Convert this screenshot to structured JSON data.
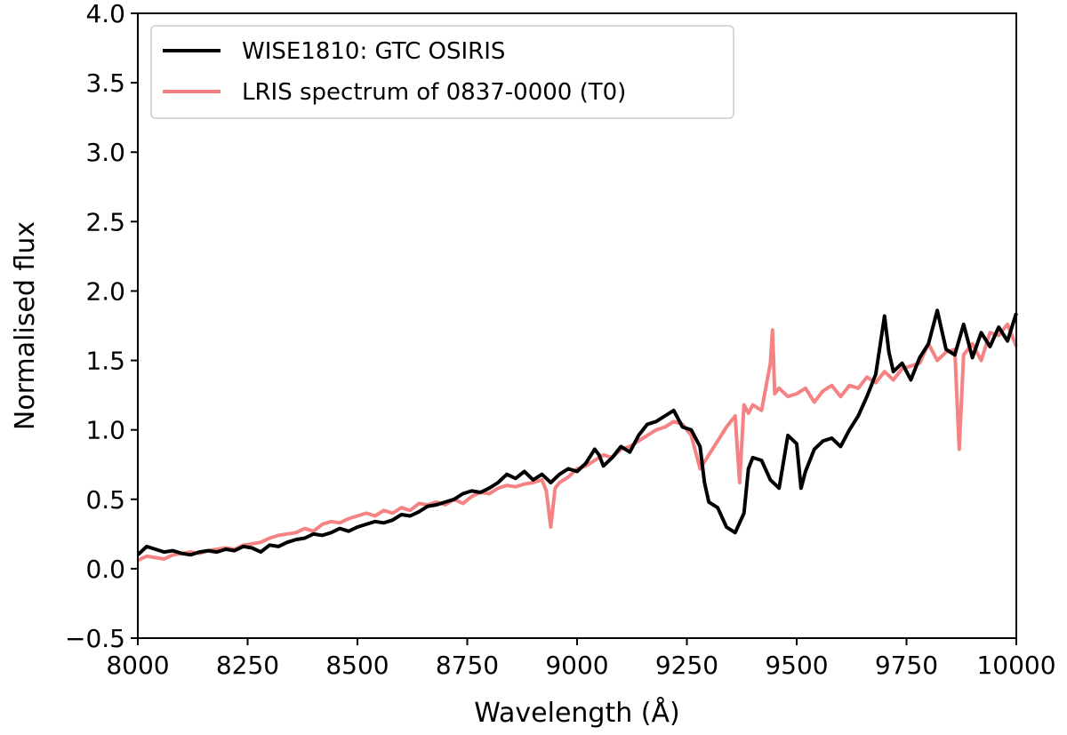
{
  "chart_data": {
    "type": "line",
    "xlabel": "Wavelength (Å)",
    "ylabel": "Normalised flux",
    "xlim": [
      8000,
      10000
    ],
    "ylim": [
      -0.5,
      4.0
    ],
    "x_ticks": [
      8000,
      8250,
      8500,
      8750,
      9000,
      9250,
      9500,
      9750,
      10000
    ],
    "x_tick_labels": [
      "8000",
      "8250",
      "8500",
      "8750",
      "9000",
      "9250",
      "9500",
      "9750",
      "10000"
    ],
    "y_ticks": [
      -0.5,
      0.0,
      0.5,
      1.0,
      1.5,
      2.0,
      2.5,
      3.0,
      3.5,
      4.0
    ],
    "y_tick_labels": [
      "−0.5",
      "0.0",
      "0.5",
      "1.0",
      "1.5",
      "2.0",
      "2.5",
      "3.0",
      "3.5",
      "4.0"
    ],
    "grid": false,
    "legend_position": "top-left",
    "series": [
      {
        "name": "WISE1810: GTC OSIRIS",
        "color": "#000000",
        "x": [
          8000,
          8020,
          8040,
          8060,
          8080,
          8100,
          8120,
          8140,
          8160,
          8180,
          8200,
          8220,
          8240,
          8260,
          8280,
          8300,
          8320,
          8340,
          8360,
          8380,
          8400,
          8420,
          8440,
          8460,
          8480,
          8500,
          8520,
          8540,
          8560,
          8580,
          8600,
          8620,
          8640,
          8660,
          8680,
          8700,
          8720,
          8740,
          8760,
          8780,
          8800,
          8820,
          8840,
          8860,
          8880,
          8900,
          8920,
          8940,
          8960,
          8980,
          9000,
          9020,
          9040,
          9050,
          9060,
          9080,
          9100,
          9120,
          9140,
          9160,
          9180,
          9200,
          9220,
          9240,
          9260,
          9280,
          9290,
          9300,
          9320,
          9340,
          9360,
          9380,
          9390,
          9400,
          9420,
          9440,
          9460,
          9480,
          9500,
          9510,
          9520,
          9540,
          9560,
          9580,
          9600,
          9620,
          9640,
          9660,
          9680,
          9700,
          9710,
          9720,
          9740,
          9760,
          9780,
          9800,
          9820,
          9840,
          9860,
          9880,
          9900,
          9920,
          9940,
          9960,
          9980,
          10000
        ],
        "y": [
          0.1,
          0.16,
          0.14,
          0.12,
          0.13,
          0.11,
          0.1,
          0.12,
          0.13,
          0.12,
          0.14,
          0.13,
          0.16,
          0.15,
          0.12,
          0.17,
          0.16,
          0.19,
          0.21,
          0.22,
          0.25,
          0.24,
          0.26,
          0.29,
          0.27,
          0.3,
          0.32,
          0.34,
          0.33,
          0.35,
          0.39,
          0.38,
          0.41,
          0.45,
          0.46,
          0.48,
          0.5,
          0.54,
          0.56,
          0.55,
          0.58,
          0.62,
          0.68,
          0.65,
          0.7,
          0.64,
          0.68,
          0.62,
          0.68,
          0.72,
          0.7,
          0.76,
          0.86,
          0.82,
          0.74,
          0.8,
          0.88,
          0.84,
          0.96,
          1.04,
          1.06,
          1.1,
          1.14,
          1.02,
          1.0,
          0.88,
          0.62,
          0.48,
          0.44,
          0.3,
          0.26,
          0.4,
          0.72,
          0.8,
          0.78,
          0.64,
          0.58,
          0.96,
          0.9,
          0.58,
          0.7,
          0.86,
          0.92,
          0.94,
          0.88,
          1.0,
          1.1,
          1.24,
          1.4,
          1.82,
          1.56,
          1.42,
          1.48,
          1.36,
          1.52,
          1.62,
          1.86,
          1.58,
          1.54,
          1.76,
          1.52,
          1.7,
          1.6,
          1.74,
          1.64,
          1.84
        ]
      },
      {
        "name": "LRIS spectrum of 0837-0000 (T0)",
        "color": "#f47c7c",
        "x": [
          8000,
          8020,
          8040,
          8060,
          8080,
          8100,
          8120,
          8140,
          8160,
          8180,
          8200,
          8220,
          8240,
          8260,
          8280,
          8300,
          8320,
          8340,
          8360,
          8380,
          8400,
          8420,
          8440,
          8460,
          8480,
          8500,
          8520,
          8540,
          8560,
          8580,
          8600,
          8620,
          8640,
          8660,
          8680,
          8700,
          8720,
          8740,
          8760,
          8780,
          8800,
          8820,
          8840,
          8860,
          8880,
          8900,
          8920,
          8930,
          8940,
          8950,
          8960,
          8980,
          9000,
          9020,
          9040,
          9060,
          9080,
          9100,
          9120,
          9140,
          9160,
          9180,
          9200,
          9220,
          9240,
          9260,
          9280,
          9300,
          9320,
          9340,
          9360,
          9370,
          9380,
          9390,
          9400,
          9420,
          9440,
          9445,
          9450,
          9460,
          9480,
          9500,
          9520,
          9540,
          9560,
          9580,
          9600,
          9620,
          9640,
          9660,
          9680,
          9700,
          9720,
          9740,
          9760,
          9780,
          9800,
          9820,
          9840,
          9860,
          9870,
          9880,
          9900,
          9920,
          9940,
          9960,
          9980,
          10000
        ],
        "y": [
          0.06,
          0.09,
          0.08,
          0.07,
          0.1,
          0.11,
          0.12,
          0.11,
          0.13,
          0.14,
          0.15,
          0.14,
          0.17,
          0.18,
          0.19,
          0.22,
          0.24,
          0.25,
          0.26,
          0.29,
          0.27,
          0.32,
          0.34,
          0.33,
          0.36,
          0.38,
          0.4,
          0.38,
          0.42,
          0.4,
          0.44,
          0.42,
          0.47,
          0.46,
          0.48,
          0.46,
          0.5,
          0.47,
          0.52,
          0.55,
          0.54,
          0.58,
          0.6,
          0.59,
          0.61,
          0.62,
          0.64,
          0.56,
          0.3,
          0.58,
          0.62,
          0.66,
          0.72,
          0.74,
          0.78,
          0.82,
          0.8,
          0.86,
          0.88,
          0.92,
          0.96,
          1.0,
          1.02,
          1.06,
          1.04,
          0.96,
          0.72,
          0.82,
          0.92,
          1.02,
          1.1,
          0.62,
          1.18,
          1.12,
          1.18,
          1.14,
          1.48,
          1.72,
          1.26,
          1.3,
          1.24,
          1.26,
          1.3,
          1.2,
          1.28,
          1.32,
          1.24,
          1.32,
          1.3,
          1.38,
          1.34,
          1.42,
          1.36,
          1.44,
          1.46,
          1.48,
          1.62,
          1.5,
          1.56,
          1.58,
          0.86,
          1.54,
          1.62,
          1.5,
          1.7,
          1.68,
          1.76,
          1.6
        ]
      }
    ]
  }
}
